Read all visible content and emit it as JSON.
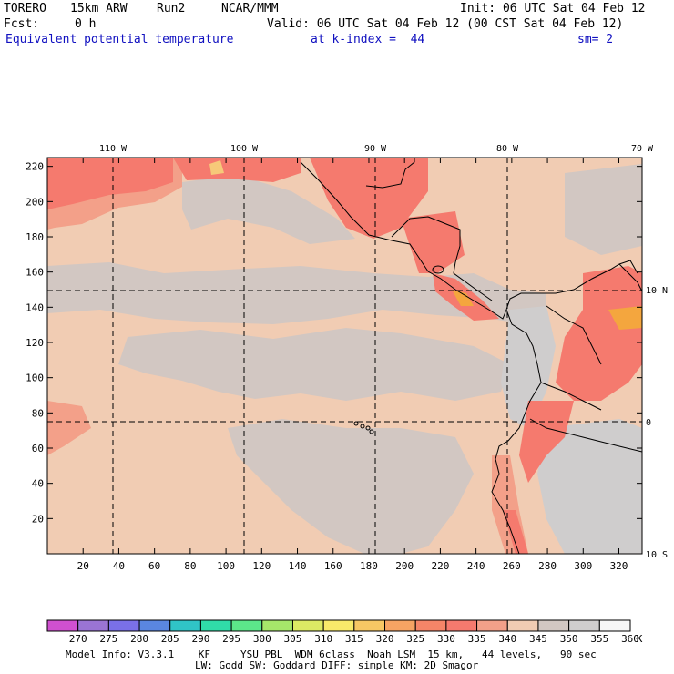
{
  "header": {
    "model": "TORERO",
    "resolution": "15km ARW",
    "run": "Run2",
    "org": "NCAR/MMM",
    "init": "Init: 06 UTC Sat 04 Feb 12",
    "fcst_label": "Fcst:",
    "fcst_value": "0 h",
    "valid": "Valid: 06 UTC Sat 04 Feb 12 (00 CST Sat 04 Feb 12)",
    "field": "Equivalent potential temperature",
    "level": "at k-index =  44",
    "smoothing": "sm= 2"
  },
  "map": {
    "top_lon_labels": [
      "110 W",
      "100 W",
      "90 W",
      "80 W",
      "70 W"
    ],
    "right_lat_labels": [
      "10 N",
      "0",
      "10 S"
    ],
    "y_grid_labels": [
      "220",
      "200",
      "180",
      "160",
      "140",
      "120",
      "100",
      "80",
      "60",
      "40",
      "20"
    ],
    "x_grid_labels": [
      "20",
      "40",
      "60",
      "80",
      "100",
      "120",
      "140",
      "160",
      "180",
      "200",
      "220",
      "240",
      "260",
      "280",
      "300",
      "320"
    ],
    "palette": {
      "very_warm": "#f57a6e",
      "warm": "#f3a089",
      "mid": "#f1ccb3",
      "cool": "#d2c7c2",
      "grey": "#cfcdcd",
      "hot": "#f4a63e",
      "hottest": "#f6c979"
    }
  },
  "colorbar": {
    "labels": [
      "270",
      "275",
      "280",
      "285",
      "290",
      "295",
      "300",
      "305",
      "310",
      "315",
      "320",
      "325",
      "330",
      "335",
      "340",
      "345",
      "350",
      "355",
      "360"
    ],
    "unit": "K",
    "colors": [
      "#d050d0",
      "#9a74d4",
      "#7a70e8",
      "#5a86e0",
      "#30c4c6",
      "#30dca8",
      "#5ce68a",
      "#a6e66a",
      "#dcea64",
      "#f8ea6a",
      "#f7c764",
      "#f6a363",
      "#f58568",
      "#f57a6e",
      "#f3a089",
      "#f1ccb3",
      "#d2c7c2",
      "#cfcdcd",
      "#f7f7f7"
    ]
  },
  "footer": {
    "line1": "Model Info: V3.3.1    KF     YSU PBL  WDM 6class  Noah LSM  15 km,   44 levels,   90 sec",
    "line2": "LW: Godd SW: Goddard DIFF: simple KM: 2D Smagor"
  }
}
